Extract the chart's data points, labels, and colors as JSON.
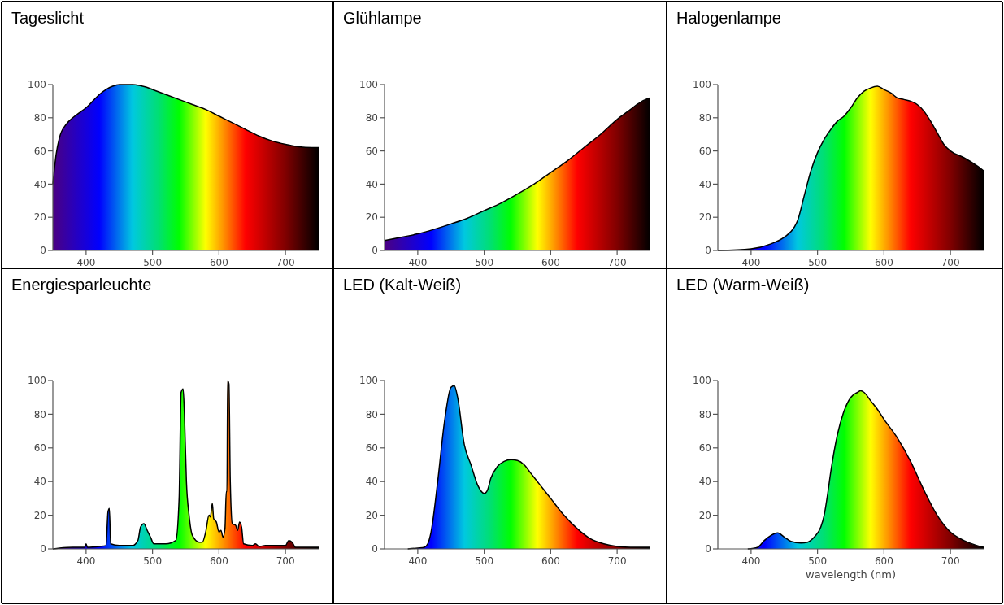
{
  "chart_data": [
    {
      "type": "area",
      "title": "Tageslicht",
      "color": "#000000",
      "xlim": [
        350,
        750
      ],
      "xticks": [
        400,
        500,
        600,
        700
      ],
      "ylim": [
        0,
        100
      ],
      "yticks": [
        0,
        20,
        40,
        60,
        80,
        100
      ],
      "x": [
        350,
        355,
        360,
        370,
        380,
        390,
        400,
        410,
        420,
        430,
        440,
        450,
        460,
        470,
        480,
        490,
        500,
        520,
        540,
        560,
        580,
        600,
        620,
        640,
        660,
        680,
        700,
        720,
        740,
        750
      ],
      "values": [
        40,
        58,
        68,
        76,
        80,
        83,
        86,
        90,
        94,
        97,
        99,
        100,
        100,
        100,
        99.5,
        98.5,
        97,
        94,
        91,
        88,
        85,
        81,
        77,
        73,
        69,
        66,
        64,
        62.5,
        62,
        62
      ]
    },
    {
      "type": "area",
      "title": "Glühlampe",
      "color": "#000000",
      "xlim": [
        350,
        750
      ],
      "xticks": [
        400,
        500,
        600,
        700
      ],
      "ylim": [
        0,
        100
      ],
      "yticks": [
        0,
        20,
        40,
        60,
        80,
        100
      ],
      "x": [
        350,
        375,
        400,
        425,
        450,
        475,
        500,
        525,
        550,
        575,
        600,
        625,
        650,
        675,
        700,
        720,
        730,
        740,
        750
      ],
      "values": [
        6,
        8,
        10,
        12.8,
        16,
        19.5,
        24,
        28.5,
        34,
        40,
        47,
        54,
        62,
        70,
        79,
        85,
        88,
        90.5,
        92
      ]
    },
    {
      "type": "area",
      "title": "Halogenlampe",
      "color": "#000000",
      "xlim": [
        350,
        750
      ],
      "xticks": [
        400,
        500,
        600,
        700
      ],
      "ylim": [
        0,
        100
      ],
      "yticks": [
        0,
        20,
        40,
        60,
        80,
        100
      ],
      "x": [
        350,
        400,
        430,
        450,
        465,
        470,
        480,
        490,
        500,
        510,
        520,
        530,
        540,
        550,
        560,
        570,
        580,
        590,
        600,
        610,
        620,
        630,
        640,
        650,
        660,
        670,
        680,
        690,
        700,
        720,
        740,
        750
      ],
      "values": [
        0,
        1,
        4,
        8,
        14,
        18,
        33,
        48,
        59,
        67,
        73,
        78,
        81,
        86,
        92,
        96,
        98,
        99,
        97,
        95,
        92,
        91,
        90,
        88,
        84,
        78,
        71,
        64,
        60,
        56,
        51,
        48
      ]
    },
    {
      "type": "area",
      "title": "Energiesparleuchte",
      "color": "#000000",
      "xlim": [
        350,
        750
      ],
      "xticks": [
        400,
        500,
        600,
        700
      ],
      "ylim": [
        0,
        100
      ],
      "yticks": [
        0,
        20,
        40,
        60,
        80,
        100
      ],
      "x": [
        350,
        360,
        380,
        398,
        400,
        402,
        420,
        430,
        433,
        435,
        437,
        450,
        470,
        478,
        482,
        487,
        492,
        497,
        502,
        520,
        535,
        540,
        543,
        546,
        548,
        551,
        555,
        560,
        570,
        575,
        580,
        585,
        587,
        590,
        592,
        596,
        600,
        603,
        606,
        609,
        611,
        612,
        613,
        615,
        617,
        620,
        625,
        628,
        631,
        634,
        637,
        650,
        655,
        660,
        670,
        690,
        700,
        705,
        710,
        715,
        750
      ],
      "values": [
        0,
        0.5,
        1,
        1,
        3,
        1,
        1.5,
        2,
        22,
        24,
        3,
        2,
        2,
        5,
        13,
        15,
        11,
        7,
        3,
        3,
        5,
        30,
        93,
        95,
        80,
        40,
        20,
        8,
        4,
        4,
        10,
        20,
        19,
        27,
        18,
        16,
        10,
        11,
        7,
        12,
        34,
        34,
        100,
        98,
        40,
        15,
        14,
        11,
        16,
        13,
        3,
        2,
        3,
        1.5,
        2,
        2,
        2,
        5,
        4,
        1,
        1
      ]
    },
    {
      "type": "area",
      "title": "LED (Kalt-Weiß)",
      "color": "#000000",
      "xlim": [
        350,
        750
      ],
      "xticks": [
        400,
        500,
        600,
        700
      ],
      "ylim": [
        0,
        100
      ],
      "yticks": [
        0,
        20,
        40,
        60,
        80,
        100
      ],
      "x": [
        385,
        400,
        410,
        415,
        420,
        430,
        440,
        450,
        455,
        460,
        470,
        480,
        490,
        500,
        505,
        510,
        520,
        530,
        540,
        550,
        560,
        570,
        580,
        590,
        600,
        620,
        640,
        660,
        680,
        700,
        720,
        750
      ],
      "values": [
        0,
        0.5,
        1,
        3,
        10,
        40,
        75,
        96,
        97,
        90,
        62,
        50,
        38,
        33,
        35,
        42,
        49,
        52,
        53,
        52.5,
        50,
        45,
        40,
        35,
        30,
        20,
        12,
        6,
        3,
        1.5,
        1,
        1
      ]
    },
    {
      "type": "area",
      "title": "LED (Warm-Weiß)",
      "xlabel": "wavelength (nm)",
      "color": "#000000",
      "xlim": [
        350,
        750
      ],
      "xticks": [
        400,
        500,
        600,
        700
      ],
      "ylim": [
        0,
        100
      ],
      "yticks": [
        0,
        20,
        40,
        60,
        80,
        100
      ],
      "x": [
        395,
        410,
        420,
        430,
        440,
        450,
        460,
        475,
        485,
        495,
        505,
        510,
        515,
        520,
        530,
        540,
        550,
        560,
        565,
        570,
        580,
        590,
        600,
        620,
        640,
        660,
        680,
        700,
        720,
        740,
        750
      ],
      "values": [
        0,
        1,
        5,
        8,
        9.5,
        7,
        4.5,
        3.5,
        4,
        7,
        13,
        20,
        32,
        46,
        68,
        82,
        90,
        93,
        94,
        93,
        88,
        83,
        77,
        66,
        52,
        35,
        20,
        10,
        5,
        2,
        1
      ]
    }
  ]
}
